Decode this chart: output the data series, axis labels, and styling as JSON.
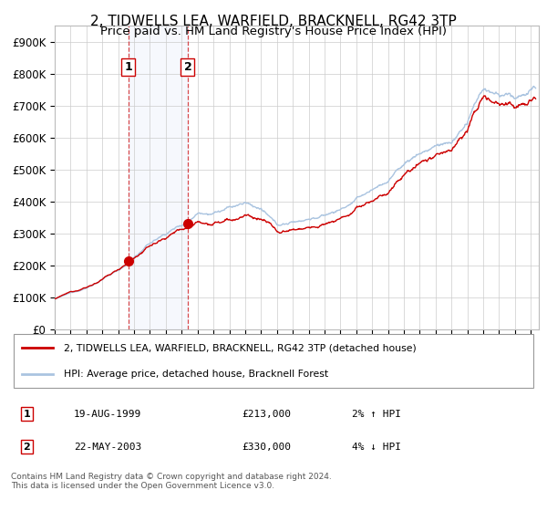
{
  "title": "2, TIDWELLS LEA, WARFIELD, BRACKNELL, RG42 3TP",
  "subtitle": "Price paid vs. HM Land Registry's House Price Index (HPI)",
  "ylim": [
    0,
    950000
  ],
  "yticks": [
    0,
    100000,
    200000,
    300000,
    400000,
    500000,
    600000,
    700000,
    800000,
    900000
  ],
  "ytick_labels": [
    "£0",
    "£100K",
    "£200K",
    "£300K",
    "£400K",
    "£500K",
    "£600K",
    "£700K",
    "£800K",
    "£900K"
  ],
  "hpi_color": "#aac4e0",
  "price_color": "#cc0000",
  "marker_color": "#cc0000",
  "background_color": "#ffffff",
  "grid_color": "#cccccc",
  "sale1_x": 1999.635,
  "sale1_y": 213000,
  "sale1_label": "1",
  "sale1_date": "19-AUG-1999",
  "sale1_price": "£213,000",
  "sale1_hpi": "2% ↑ HPI",
  "sale2_x": 2003.385,
  "sale2_y": 330000,
  "sale2_label": "2",
  "sale2_date": "22-MAY-2003",
  "sale2_price": "£330,000",
  "sale2_hpi": "4% ↓ HPI",
  "legend_line1": "2, TIDWELLS LEA, WARFIELD, BRACKNELL, RG42 3TP (detached house)",
  "legend_line2": "HPI: Average price, detached house, Bracknell Forest",
  "footnote": "Contains HM Land Registry data © Crown copyright and database right 2024.\nThis data is licensed under the Open Government Licence v3.0.",
  "shade_x1": 1999.635,
  "shade_x2": 2003.385,
  "title_fontsize": 11,
  "subtitle_fontsize": 10,
  "xlim_left": 1995.0,
  "xlim_right": 2025.5
}
